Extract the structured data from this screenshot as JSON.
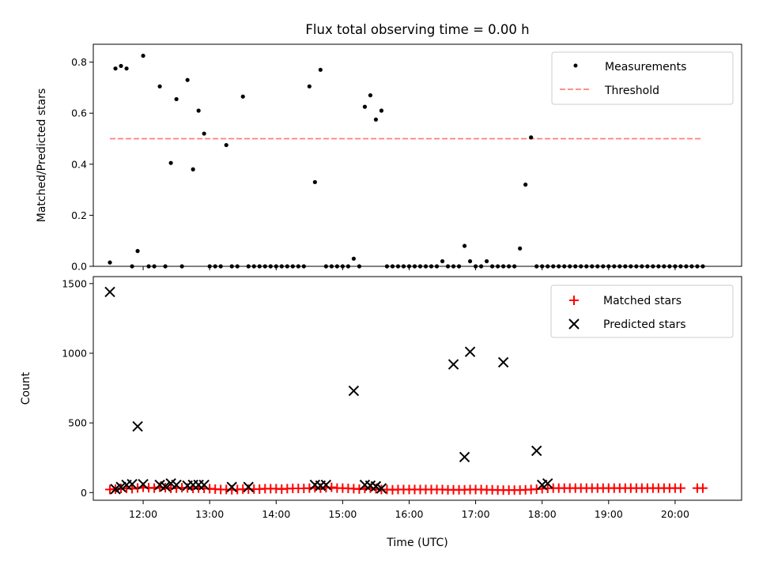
{
  "chart_data": [
    {
      "type": "scatter",
      "title": "Flux total observing time = 0.00 h",
      "xlabel": "",
      "ylabel": "Matched/Predicted stars",
      "xlim": [
        "11:15",
        "21:00"
      ],
      "ylim": [
        0,
        0.87
      ],
      "yticks": [
        "0.0",
        "0.2",
        "0.4",
        "0.6",
        "0.8"
      ],
      "grid": false,
      "legend_position": "top-right",
      "legend": [
        "Measurements",
        "Threshold"
      ],
      "threshold": {
        "value": 0.5,
        "x_range": [
          "11:30",
          "20:25"
        ],
        "color": "#ff7f7f",
        "style": "dashed"
      },
      "series": [
        {
          "name": "Measurements",
          "color": "#000000",
          "marker": "dot",
          "x": [
            "11:30",
            "11:35",
            "11:40",
            "11:45",
            "11:50",
            "11:55",
            "12:00",
            "12:05",
            "12:10",
            "12:15",
            "12:20",
            "12:25",
            "12:30",
            "12:35",
            "12:40",
            "12:45",
            "12:50",
            "12:55",
            "13:00",
            "13:05",
            "13:10",
            "13:15",
            "13:20",
            "13:25",
            "13:30",
            "13:35",
            "13:40",
            "13:45",
            "13:50",
            "13:55",
            "14:00",
            "14:05",
            "14:10",
            "14:15",
            "14:20",
            "14:25",
            "14:30",
            "14:35",
            "14:40",
            "14:45",
            "14:50",
            "14:55",
            "15:00",
            "15:05",
            "15:10",
            "15:15",
            "15:20",
            "15:25",
            "15:30",
            "15:35",
            "15:40",
            "15:45",
            "15:50",
            "15:55",
            "16:00",
            "16:05",
            "16:10",
            "16:15",
            "16:20",
            "16:25",
            "16:30",
            "16:35",
            "16:40",
            "16:45",
            "16:50",
            "16:55",
            "17:00",
            "17:05",
            "17:10",
            "17:15",
            "17:20",
            "17:25",
            "17:30",
            "17:35",
            "17:40",
            "17:45",
            "17:50",
            "17:55",
            "18:00",
            "18:05",
            "18:10",
            "18:15",
            "18:20",
            "18:25",
            "18:30",
            "18:35",
            "18:40",
            "18:45",
            "18:50",
            "18:55",
            "19:00",
            "19:05",
            "19:10",
            "19:15",
            "19:20",
            "19:25",
            "19:30",
            "19:35",
            "19:40",
            "19:45",
            "19:50",
            "19:55",
            "20:00",
            "20:05",
            "20:10",
            "20:15",
            "20:20",
            "20:25"
          ],
          "values": [
            0.015,
            0.775,
            0.785,
            0.775,
            0.0,
            0.06,
            0.825,
            0.0,
            0.0,
            0.705,
            0.0,
            0.405,
            0.655,
            0.0,
            0.73,
            0.38,
            0.61,
            0.52,
            0.0,
            0.0,
            0.0,
            0.475,
            0.0,
            0.0,
            0.665,
            0.0,
            0.0,
            0.0,
            0.0,
            0.0,
            0.0,
            0.0,
            0.0,
            0.0,
            0.0,
            0.0,
            0.705,
            0.33,
            0.77,
            0.0,
            0.0,
            0.0,
            0.0,
            0.0,
            0.03,
            0.0,
            0.625,
            0.67,
            0.575,
            0.61,
            0.0,
            0.0,
            0.0,
            0.0,
            0.0,
            0.0,
            0.0,
            0.0,
            0.0,
            0.0,
            0.02,
            0.0,
            0.0,
            0.0,
            0.08,
            0.02,
            0.0,
            0.0,
            0.02,
            0.0,
            0.0,
            0.0,
            0.0,
            0.0,
            0.07,
            0.32,
            0.505,
            0.0,
            0.0,
            0.0,
            0.0,
            0.0,
            0.0,
            0.0,
            0.0,
            0.0,
            0.0,
            0.0,
            0.0,
            0.0,
            0.0,
            0.0,
            0.0,
            0.0,
            0.0,
            0.0,
            0.0,
            0.0,
            0.0,
            0.0,
            0.0,
            0.0,
            0.0,
            0.0,
            0.0,
            0.0,
            0.0,
            0.0
          ]
        }
      ]
    },
    {
      "type": "scatter",
      "title": "",
      "xlabel": "Time (UTC)",
      "ylabel": "Count",
      "xlim": [
        "11:15",
        "21:00"
      ],
      "xticks": [
        "12:00",
        "13:00",
        "14:00",
        "15:00",
        "16:00",
        "17:00",
        "18:00",
        "19:00",
        "20:00"
      ],
      "ylim": [
        -55,
        1550
      ],
      "yticks": [
        "0",
        "500",
        "1000",
        "1500"
      ],
      "grid": false,
      "legend_position": "top-right",
      "legend": [
        "Matched stars",
        "Predicted stars"
      ],
      "series": [
        {
          "name": "Matched stars",
          "color": "#ff0000",
          "marker": "plus",
          "x": [
            "11:30",
            "11:35",
            "11:40",
            "11:45",
            "11:50",
            "11:55",
            "12:00",
            "12:05",
            "12:10",
            "12:15",
            "12:20",
            "12:25",
            "12:30",
            "12:35",
            "12:40",
            "12:45",
            "12:50",
            "12:55",
            "13:00",
            "13:05",
            "13:10",
            "13:15",
            "13:20",
            "13:25",
            "13:30",
            "13:35",
            "13:40",
            "13:45",
            "13:50",
            "13:55",
            "14:00",
            "14:05",
            "14:10",
            "14:15",
            "14:20",
            "14:25",
            "14:30",
            "14:35",
            "14:40",
            "14:45",
            "14:50",
            "14:55",
            "15:00",
            "15:05",
            "15:10",
            "15:15",
            "15:20",
            "15:25",
            "15:30",
            "15:35",
            "15:40",
            "15:45",
            "15:50",
            "15:55",
            "16:00",
            "16:05",
            "16:10",
            "16:15",
            "16:20",
            "16:25",
            "16:30",
            "16:35",
            "16:40",
            "16:45",
            "16:50",
            "16:55",
            "17:00",
            "17:05",
            "17:10",
            "17:15",
            "17:20",
            "17:25",
            "17:30",
            "17:35",
            "17:40",
            "17:45",
            "17:50",
            "17:55",
            "18:00",
            "18:05",
            "18:10",
            "18:15",
            "18:20",
            "18:25",
            "18:30",
            "18:35",
            "18:40",
            "18:45",
            "18:50",
            "18:55",
            "19:00",
            "19:05",
            "19:10",
            "19:15",
            "19:20",
            "19:25",
            "19:30",
            "19:35",
            "19:40",
            "19:45",
            "19:50",
            "19:55",
            "20:00",
            "20:05",
            "20:20",
            "20:25"
          ],
          "values": [
            22,
            25,
            30,
            30,
            28,
            33,
            38,
            35,
            32,
            38,
            35,
            30,
            32,
            35,
            33,
            30,
            32,
            30,
            28,
            25,
            22,
            22,
            20,
            22,
            25,
            25,
            25,
            25,
            28,
            28,
            28,
            25,
            28,
            30,
            30,
            30,
            32,
            35,
            32,
            35,
            38,
            32,
            32,
            30,
            28,
            25,
            30,
            32,
            28,
            22,
            22,
            20,
            22,
            22,
            22,
            22,
            22,
            22,
            22,
            22,
            22,
            20,
            20,
            20,
            20,
            22,
            22,
            22,
            20,
            20,
            18,
            18,
            18,
            18,
            18,
            20,
            22,
            25,
            28,
            30,
            32,
            32,
            32,
            32,
            32,
            32,
            32,
            32,
            32,
            32,
            32,
            32,
            32,
            32,
            32,
            32,
            32,
            32,
            32,
            32,
            32,
            32,
            32,
            32,
            32,
            32
          ]
        },
        {
          "name": "Predicted stars",
          "color": "#000000",
          "marker": "x",
          "x": [
            "11:30",
            "11:35",
            "11:40",
            "11:45",
            "11:50",
            "11:55",
            "12:00",
            "12:15",
            "12:20",
            "12:25",
            "12:30",
            "12:40",
            "12:45",
            "12:50",
            "12:55",
            "13:20",
            "13:35",
            "14:35",
            "14:40",
            "14:45",
            "15:10",
            "15:20",
            "15:25",
            "15:30",
            "15:35",
            "16:40",
            "16:50",
            "16:55",
            "17:25",
            "17:55",
            "18:00",
            "18:05"
          ],
          "values": [
            1440,
            25,
            40,
            55,
            60,
            475,
            60,
            55,
            45,
            65,
            55,
            50,
            55,
            55,
            55,
            40,
            40,
            55,
            50,
            55,
            730,
            55,
            50,
            45,
            30,
            920,
            255,
            1010,
            935,
            300,
            55,
            65
          ]
        }
      ]
    }
  ]
}
